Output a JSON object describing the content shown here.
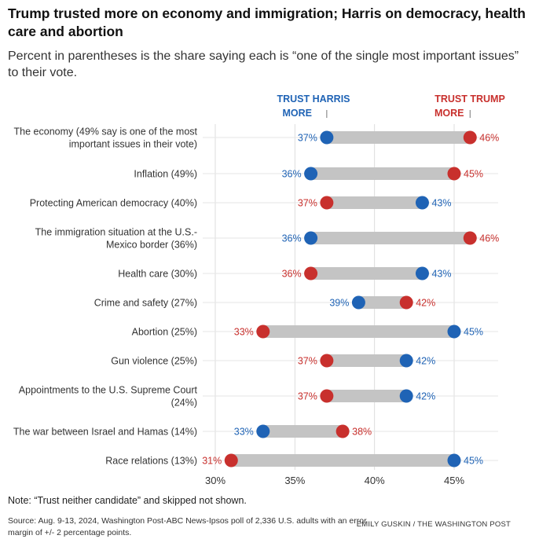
{
  "title": "Trump trusted more on economy and immigration; Harris on democracy, health care and abortion",
  "subtitle": "Percent in parentheses is the share saying each is “one of the single most important issues” to their vote.",
  "legend": {
    "harris": [
      "TRUST HARRIS",
      "MORE"
    ],
    "trump": [
      "TRUST TRUMP",
      "MORE"
    ]
  },
  "colors": {
    "harris": "#1f63b5",
    "trump": "#c8302d",
    "bar": "#c4c4c4",
    "grid": "#dddddd",
    "text": "#333333"
  },
  "chart_data": {
    "type": "dumbbell",
    "title": "Trump trusted more on economy and immigration; Harris on democracy, health care and abortion",
    "xlabel": "",
    "ylabel": "",
    "xlim": [
      30,
      47
    ],
    "xticks": [
      30,
      35,
      40,
      45
    ],
    "xtick_labels": [
      "30%",
      "35%",
      "40%",
      "45%"
    ],
    "series": [
      {
        "name": "Trust Harris more",
        "color": "#1f63b5",
        "values": [
          37,
          36,
          43,
          36,
          43,
          39,
          45,
          42,
          42,
          33,
          45
        ]
      },
      {
        "name": "Trust Trump more",
        "color": "#c8302d",
        "values": [
          46,
          45,
          37,
          46,
          36,
          42,
          33,
          37,
          37,
          38,
          31
        ]
      }
    ],
    "categories": [
      [
        "The economy (49% say is one of the most",
        "important issues in their vote)"
      ],
      [
        "Inflation (49%)"
      ],
      [
        "Protecting American democracy (40%)"
      ],
      [
        "The immigration situation at the U.S.-",
        "Mexico border (36%)"
      ],
      [
        "Health care (30%)"
      ],
      [
        "Crime and safety (27%)"
      ],
      [
        "Abortion (25%)"
      ],
      [
        "Gun violence (25%)"
      ],
      [
        "Appointments to the U.S. Supreme Court",
        "(24%)"
      ],
      [
        "The war between Israel and Hamas (14%)"
      ],
      [
        "Race relations (13%)"
      ]
    ],
    "value_labels": {
      "harris": [
        "37%",
        "36%",
        "43%",
        "36%",
        "43%",
        "39%",
        "45%",
        "42%",
        "42%",
        "33%",
        "45%"
      ],
      "trump": [
        "46%",
        "45%",
        "37%",
        "46%",
        "36%",
        "42%",
        "33%",
        "37%",
        "37%",
        "38%",
        "31%"
      ]
    }
  },
  "note": "Note: “Trust neither candidate” and skipped not shown.",
  "source": "Source: Aug. 9-13, 2024, Washington Post-ABC News-Ipsos poll of 2,336 U.S. adults with an error margin of +/- 2 percentage points.",
  "credit": "EMILY GUSKIN / THE WASHINGTON POST"
}
